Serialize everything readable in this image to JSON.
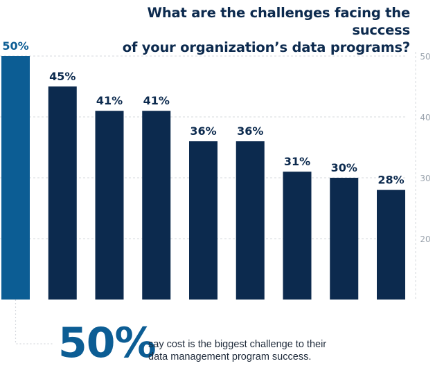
{
  "title": {
    "line1": "What are the challenges facing the success",
    "line2": "of your organization’s data programs?"
  },
  "chart_data": {
    "type": "bar",
    "categories": [
      "",
      "",
      "",
      "",
      "",
      "",
      "",
      "",
      ""
    ],
    "values": [
      50,
      45,
      41,
      41,
      36,
      36,
      31,
      30,
      28
    ],
    "value_labels": [
      "50%",
      "45%",
      "41%",
      "41%",
      "36%",
      "36%",
      "31%",
      "30%",
      "28%"
    ],
    "title": "What are the challenges facing the success of your organization’s data programs?",
    "xlabel": "",
    "ylabel": "",
    "ylim": [
      10,
      50
    ],
    "yticks": [
      20,
      30,
      40,
      50
    ],
    "grid": true,
    "highlight_index": 0,
    "colors": {
      "highlight": "#0c5d94",
      "bar": "#0c2a4e",
      "grid": "#d6d9de",
      "tick": "#9aa3ad"
    }
  },
  "callout": {
    "number": "50%",
    "line1": "say cost is the biggest challenge to their",
    "line2": "data management program success."
  }
}
